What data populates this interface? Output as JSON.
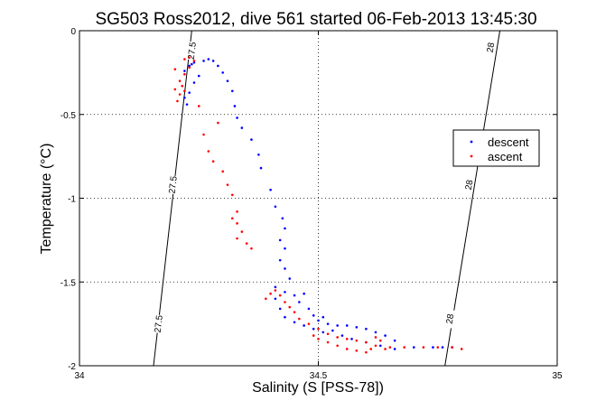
{
  "chart_data": {
    "type": "scatter",
    "title": "SG503 Ross2012, dive 561 started 06-Feb-2013 13:45:30",
    "xlabel": "Salinity (S [PSS-78])",
    "ylabel": "Temperature (°C)",
    "xlim": [
      34,
      35
    ],
    "ylim": [
      -2,
      0
    ],
    "x_ticks": [
      34,
      34.5,
      35
    ],
    "y_ticks": [
      0,
      -0.5,
      -1,
      -1.5,
      -2
    ],
    "x_tick_labels": [
      "34",
      "34.5",
      "35"
    ],
    "y_tick_labels": [
      "0",
      "-0.5",
      "-1",
      "-1.5",
      "-2"
    ],
    "grid": true,
    "legend": {
      "placement": "right",
      "entries": [
        {
          "label": "descent",
          "color": "#0000ff"
        },
        {
          "label": "ascent",
          "color": "#ff0000"
        }
      ]
    },
    "density_contours": [
      {
        "label": "27.5",
        "points": [
          [
            34.155,
            -2.0
          ],
          [
            34.235,
            0.0
          ]
        ],
        "label_positions": [
          [
            34.165,
            -1.75
          ],
          [
            34.195,
            -0.92
          ],
          [
            34.235,
            -0.12
          ]
        ]
      },
      {
        "label": "28",
        "points": [
          [
            34.765,
            -2.0
          ],
          [
            34.88,
            0.0
          ]
        ],
        "label_positions": [
          [
            34.775,
            -1.72
          ],
          [
            34.815,
            -0.92
          ],
          [
            34.86,
            -0.1
          ]
        ]
      }
    ],
    "series": [
      {
        "name": "descent",
        "color": "#0000ff",
        "points": [
          [
            34.22,
            -0.24
          ],
          [
            34.23,
            -0.21
          ],
          [
            34.24,
            -0.19
          ],
          [
            34.26,
            -0.18
          ],
          [
            34.27,
            -0.17
          ],
          [
            34.28,
            -0.18
          ],
          [
            34.29,
            -0.21
          ],
          [
            34.3,
            -0.25
          ],
          [
            34.31,
            -0.3
          ],
          [
            34.32,
            -0.36
          ],
          [
            34.325,
            -0.45
          ],
          [
            34.33,
            -0.52
          ],
          [
            34.34,
            -0.58
          ],
          [
            34.36,
            -0.65
          ],
          [
            34.375,
            -0.74
          ],
          [
            34.38,
            -0.82
          ],
          [
            34.4,
            -0.95
          ],
          [
            34.41,
            -1.05
          ],
          [
            34.425,
            -1.12
          ],
          [
            34.43,
            -1.18
          ],
          [
            34.42,
            -1.25
          ],
          [
            34.43,
            -1.3
          ],
          [
            34.42,
            -1.37
          ],
          [
            34.43,
            -1.42
          ],
          [
            34.44,
            -1.48
          ],
          [
            34.41,
            -1.53
          ],
          [
            34.43,
            -1.56
          ],
          [
            34.45,
            -1.58
          ],
          [
            34.47,
            -1.57
          ],
          [
            34.46,
            -1.62
          ],
          [
            34.48,
            -1.66
          ],
          [
            34.49,
            -1.7
          ],
          [
            34.5,
            -1.73
          ],
          [
            34.51,
            -1.71
          ],
          [
            34.52,
            -1.75
          ],
          [
            34.54,
            -1.76
          ],
          [
            34.56,
            -1.76
          ],
          [
            34.58,
            -1.77
          ],
          [
            34.6,
            -1.78
          ],
          [
            34.62,
            -1.8
          ],
          [
            34.64,
            -1.82
          ],
          [
            34.66,
            -1.85
          ],
          [
            34.63,
            -1.88
          ],
          [
            34.6,
            -1.86
          ],
          [
            34.57,
            -1.84
          ],
          [
            34.55,
            -1.82
          ],
          [
            34.53,
            -1.79
          ],
          [
            34.51,
            -1.8
          ],
          [
            34.49,
            -1.78
          ],
          [
            34.47,
            -1.76
          ],
          [
            34.45,
            -1.74
          ],
          [
            34.43,
            -1.71
          ],
          [
            34.42,
            -1.66
          ],
          [
            34.41,
            -1.6
          ],
          [
            34.66,
            -1.9
          ],
          [
            34.7,
            -1.89
          ],
          [
            34.74,
            -1.89
          ],
          [
            34.76,
            -1.89
          ],
          [
            34.78,
            -1.89
          ],
          [
            34.24,
            -0.31
          ],
          [
            34.23,
            -0.37
          ],
          [
            34.22,
            -0.4
          ],
          [
            34.25,
            -0.27
          ],
          [
            34.225,
            -0.44
          ],
          [
            34.235,
            -0.2
          ]
        ]
      },
      {
        "name": "ascent",
        "color": "#ff0000",
        "points": [
          [
            34.22,
            -0.17
          ],
          [
            34.23,
            -0.16
          ],
          [
            34.24,
            -0.18
          ],
          [
            34.23,
            -0.22
          ],
          [
            34.22,
            -0.26
          ],
          [
            34.21,
            -0.3
          ],
          [
            34.215,
            -0.33
          ],
          [
            34.22,
            -0.36
          ],
          [
            34.21,
            -0.38
          ],
          [
            34.2,
            -0.35
          ],
          [
            34.205,
            -0.42
          ],
          [
            34.2,
            -0.23
          ],
          [
            34.26,
            -0.62
          ],
          [
            34.27,
            -0.72
          ],
          [
            34.28,
            -0.78
          ],
          [
            34.3,
            -0.84
          ],
          [
            34.31,
            -0.92
          ],
          [
            34.32,
            -0.98
          ],
          [
            34.33,
            -1.08
          ],
          [
            34.32,
            -1.12
          ],
          [
            34.33,
            -1.15
          ],
          [
            34.34,
            -1.2
          ],
          [
            34.33,
            -1.24
          ],
          [
            34.41,
            -1.55
          ],
          [
            34.42,
            -1.58
          ],
          [
            34.43,
            -1.62
          ],
          [
            34.44,
            -1.65
          ],
          [
            34.45,
            -1.68
          ],
          [
            34.46,
            -1.72
          ],
          [
            34.48,
            -1.75
          ],
          [
            34.5,
            -1.78
          ],
          [
            34.52,
            -1.81
          ],
          [
            34.54,
            -1.83
          ],
          [
            34.56,
            -1.84
          ],
          [
            34.58,
            -1.85
          ],
          [
            34.6,
            -1.86
          ],
          [
            34.62,
            -1.88
          ],
          [
            34.64,
            -1.9
          ],
          [
            34.63,
            -1.85
          ],
          [
            34.62,
            -1.83
          ],
          [
            34.61,
            -1.9
          ],
          [
            34.6,
            -1.92
          ],
          [
            34.58,
            -1.91
          ],
          [
            34.56,
            -1.9
          ],
          [
            34.54,
            -1.88
          ],
          [
            34.52,
            -1.86
          ],
          [
            34.5,
            -1.84
          ],
          [
            34.49,
            -1.82
          ],
          [
            34.65,
            -1.89
          ],
          [
            34.68,
            -1.89
          ],
          [
            34.72,
            -1.89
          ],
          [
            34.75,
            -1.89
          ],
          [
            34.78,
            -1.89
          ],
          [
            34.8,
            -1.9
          ],
          [
            34.4,
            -1.57
          ],
          [
            34.39,
            -1.6
          ],
          [
            34.36,
            -1.3
          ],
          [
            34.35,
            -1.27
          ],
          [
            34.29,
            -0.55
          ],
          [
            34.25,
            -0.45
          ]
        ]
      }
    ]
  }
}
